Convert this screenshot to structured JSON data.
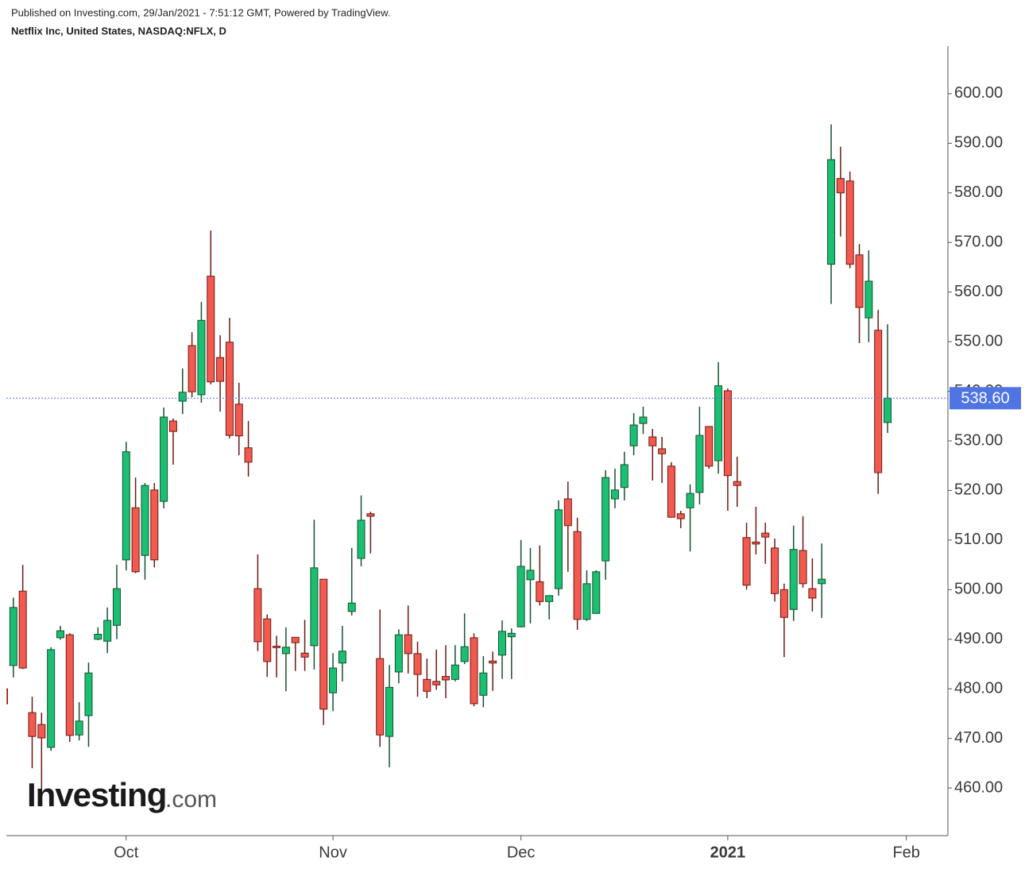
{
  "chart_data": {
    "type": "candlestick",
    "title": "Netflix Inc, United States, NASDAQ:NFLX, D",
    "subtitle": "Published on Investing.com, 29/Jan/2021 - 7:51:12 GMT, Powered by TradingView.",
    "watermark": {
      "brand": "Investing",
      "suffix": ".com"
    },
    "up_color": "#1bbf72",
    "down_color": "#f2594f",
    "up_wick_color": "#15512f",
    "down_wick_color": "#6b1a14",
    "price_line_color": "#4f74e3",
    "categories": [
      null,
      null,
      null,
      null,
      null,
      null,
      null,
      null,
      null,
      null,
      null,
      null,
      null,
      "Oct",
      null,
      null,
      null,
      null,
      null,
      null,
      null,
      null,
      null,
      null,
      null,
      null,
      null,
      null,
      null,
      null,
      null,
      null,
      null,
      null,
      null,
      "Nov",
      null,
      null,
      null,
      null,
      null,
      null,
      null,
      null,
      null,
      null,
      null,
      null,
      null,
      null,
      null,
      null,
      null,
      null,
      null,
      "Dec",
      null,
      null,
      null,
      null,
      null,
      null,
      null,
      null,
      null,
      null,
      null,
      null,
      null,
      null,
      null,
      null,
      null,
      null,
      null,
      null,
      null,
      "2021",
      null,
      null,
      null,
      null,
      null,
      null,
      null,
      null,
      null,
      null,
      null,
      null,
      null,
      null,
      null,
      null,
      null,
      null,
      "Feb"
    ],
    "bold_categories": [
      "2021"
    ],
    "open": [
      480,
      484.7,
      499.7,
      475.2,
      472.8,
      468.2,
      490.3,
      490.9,
      470.7,
      474.6,
      490.0,
      489.6,
      492.8,
      506.0,
      516.5,
      506.9,
      520.1,
      517.8,
      534.0,
      538.0,
      549.2,
      539.3,
      563.2,
      546.8,
      549.9,
      537.4,
      528.6,
      500.2,
      494.1,
      488.6,
      487.1,
      490.4,
      487.2,
      488.7,
      502.1,
      479.2,
      485.2,
      495.6,
      506.3,
      515.3,
      486.1,
      470.4,
      483.4,
      490.9,
      487.1,
      481.9,
      481.5,
      482.5,
      481.9,
      485.5,
      490.3,
      478.7,
      485.6,
      486.8,
      490.5,
      492.5,
      502.0,
      501.6,
      497.6,
      500.2,
      518.3,
      511.7,
      494.0,
      495.2,
      505.8,
      518.3,
      520.6,
      529.0,
      533.5,
      530.8,
      528.4,
      524.9,
      515.3,
      516.5,
      519.6,
      532.9,
      526.0,
      540.1,
      521.8,
      510.5,
      509.6,
      511.4,
      508.4,
      500.0,
      496.0,
      507.9,
      500.2,
      501.2,
      565.6,
      582.9,
      582.4,
      567.5,
      554.8,
      552.3,
      533.7,
      null,
      null
    ],
    "high": [
      481,
      498.4,
      505.0,
      478.4,
      475.2,
      488.4,
      492.7,
      491.2,
      477.3,
      485.3,
      492.4,
      496.4,
      505.0,
      529.8,
      522.6,
      521.5,
      521.5,
      536.7,
      534.5,
      544.6,
      551.9,
      558.0,
      572.4,
      551.3,
      554.8,
      541.7,
      534.0,
      507.1,
      495.0,
      490.7,
      492.4,
      490.4,
      493.9,
      514.1,
      502.1,
      487.2,
      492.7,
      508.4,
      519.0,
      515.7,
      496.0,
      484.8,
      492.0,
      496.8,
      489.5,
      486.1,
      487.9,
      488.8,
      488.8,
      495.2,
      491.2,
      486.6,
      487.5,
      493.8,
      492.2,
      510.0,
      508.4,
      508.9,
      498.8,
      518.0,
      521.8,
      514.5,
      503.9,
      503.9,
      524.1,
      524.4,
      527.8,
      535.6,
      536.9,
      532.4,
      530.8,
      525.7,
      515.9,
      521.2,
      536.9,
      532.9,
      545.9,
      540.6,
      526.8,
      513.5,
      516.7,
      513.5,
      510.3,
      501.2,
      512.9,
      514.8,
      506.3,
      509.3,
      593.8,
      589.3,
      584.3,
      569.7,
      568.4,
      556.4,
      553.5,
      null,
      null
    ],
    "low": [
      476,
      482.3,
      484.0,
      464.0,
      458.7,
      467.5,
      489.9,
      469.3,
      469.6,
      468.3,
      489.8,
      487.2,
      490.0,
      503.9,
      503.3,
      502.0,
      504.5,
      516.4,
      525.2,
      535.4,
      538.8,
      537.7,
      541.4,
      535.9,
      530.5,
      527.1,
      522.8,
      487.6,
      482.4,
      482.3,
      479.5,
      483.6,
      483.6,
      483.9,
      472.7,
      475.5,
      481.5,
      494.8,
      504.7,
      507.3,
      468.3,
      464.2,
      481.1,
      483.1,
      478.4,
      478.1,
      479.8,
      478.1,
      481.5,
      485.0,
      476.5,
      476.3,
      479.6,
      482.0,
      482.0,
      492.4,
      493.2,
      496.8,
      494.0,
      498.8,
      503.6,
      491.9,
      493.7,
      495.2,
      502.0,
      516.4,
      518.0,
      527.1,
      531.4,
      522.0,
      521.5,
      514.5,
      512.4,
      507.7,
      517.2,
      524.4,
      523.4,
      515.9,
      516.7,
      500.0,
      507.1,
      505.2,
      497.6,
      486.4,
      493.7,
      500.4,
      495.6,
      494.3,
      557.6,
      571.2,
      564.8,
      549.7,
      549.9,
      519.3,
      531.6,
      null,
      null
    ],
    "close": [
      477,
      496.4,
      484.2,
      470.4,
      470.1,
      487.9,
      491.7,
      470.6,
      473.5,
      483.2,
      491.0,
      493.8,
      500.2,
      527.8,
      503.6,
      521.0,
      506.0,
      534.8,
      531.9,
      539.8,
      539.9,
      554.3,
      541.9,
      542.0,
      531.1,
      531.0,
      525.7,
      489.5,
      485.5,
      488.3,
      488.4,
      489.3,
      486.4,
      504.4,
      475.9,
      484.2,
      487.6,
      497.3,
      514.0,
      514.8,
      470.7,
      480.3,
      490.9,
      487.1,
      482.9,
      479.5,
      480.8,
      481.8,
      484.8,
      488.5,
      477.0,
      483.2,
      485.2,
      491.6,
      491.2,
      504.7,
      503.9,
      497.6,
      498.8,
      516.1,
      512.9,
      494.0,
      501.2,
      503.6,
      522.6,
      520.1,
      525.2,
      533.2,
      534.8,
      529.0,
      527.4,
      514.6,
      514.3,
      519.4,
      531.1,
      524.9,
      541.1,
      523.0,
      521.0,
      500.9,
      509.2,
      510.6,
      499.2,
      494.4,
      508.1,
      501.2,
      498.3,
      502.1,
      586.7,
      580.0,
      565.6,
      556.9,
      562.2,
      523.6,
      538.6,
      null,
      null
    ],
    "last_price": {
      "value": 538.6,
      "label": "538.60"
    },
    "ylim": [
      450.4,
      609.6
    ],
    "yticks": [
      {
        "value": 460,
        "label": "460.00"
      },
      {
        "value": 470,
        "label": "470.00"
      },
      {
        "value": 480,
        "label": "480.00"
      },
      {
        "value": 490,
        "label": "490.00"
      },
      {
        "value": 500,
        "label": "500.00"
      },
      {
        "value": 510,
        "label": "510.00"
      },
      {
        "value": 520,
        "label": "520.00"
      },
      {
        "value": 530,
        "label": "530.00"
      },
      {
        "value": 540,
        "label": "540.00"
      },
      {
        "value": 550,
        "label": "550.00"
      },
      {
        "value": 560,
        "label": "560.00"
      },
      {
        "value": 570,
        "label": "570.00"
      },
      {
        "value": 580,
        "label": "580.00"
      },
      {
        "value": 590,
        "label": "590.00"
      },
      {
        "value": 600,
        "label": "600.00"
      }
    ],
    "grid": false
  }
}
